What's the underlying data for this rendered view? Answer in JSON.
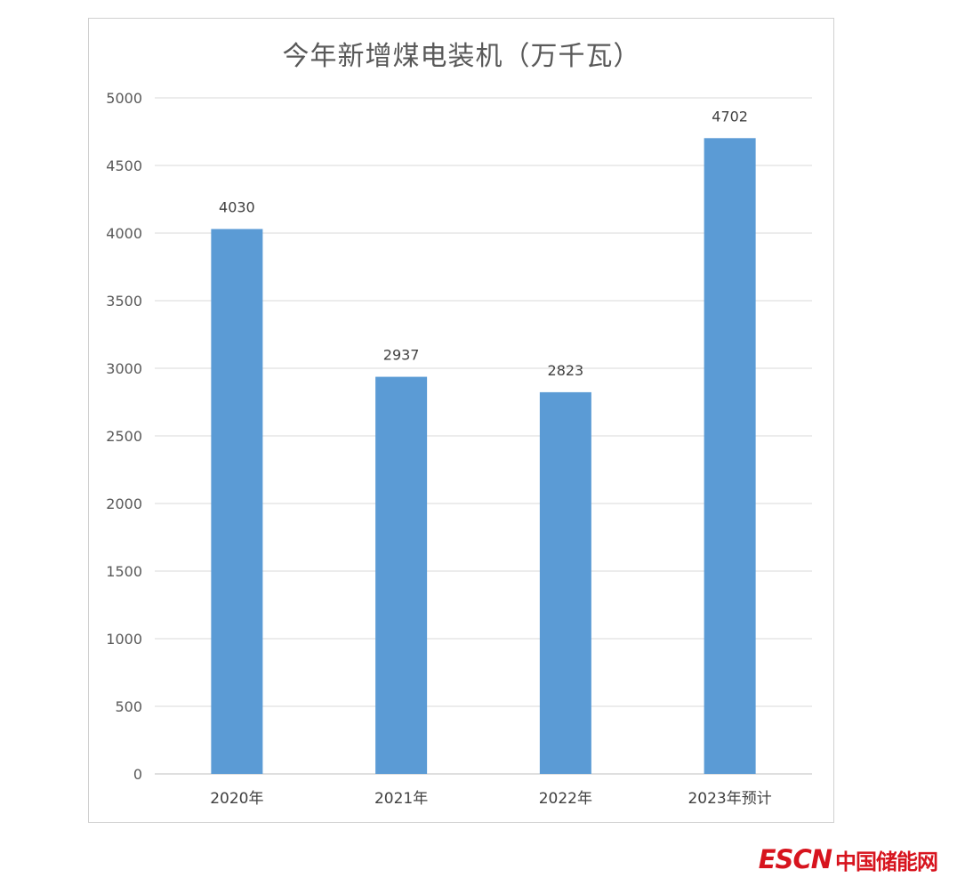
{
  "chart_data": {
    "type": "bar",
    "title": "今年新增煤电装机（万千瓦）",
    "categories": [
      "2020年",
      "2021年",
      "2022年",
      "2023年预计"
    ],
    "values": [
      4030,
      2937,
      2823,
      4702
    ],
    "data_labels": [
      "4030",
      "2937",
      "2823",
      "4702"
    ],
    "ylim": [
      0,
      5000
    ],
    "yticks": [
      "0",
      "500",
      "1000",
      "1500",
      "2000",
      "2500",
      "3000",
      "3500",
      "4000",
      "4500",
      "5000"
    ],
    "grid": true,
    "legend": "none",
    "bar_color": "#5b9bd5"
  },
  "watermark": {
    "brand_latin": "ESCN",
    "brand_cn": "中国储能网",
    "color": "#d7141e"
  }
}
